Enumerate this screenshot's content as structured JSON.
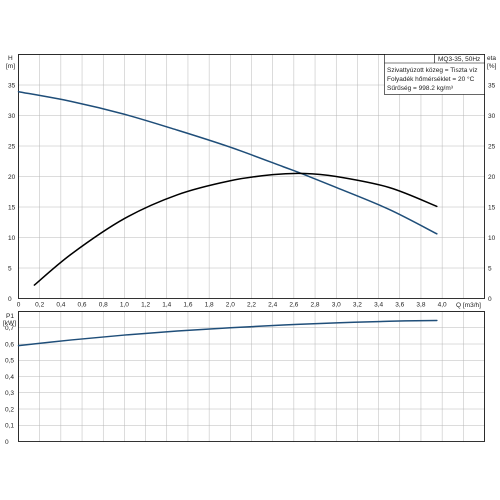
{
  "legend": {
    "model": "MQ3-35, 50Hz",
    "lines": [
      "Szivattyúzott közeg = Tiszta víz",
      "Folyadék hőmérséklet = 20 °C",
      "Sűrűség = 998.2 kg/m³"
    ]
  },
  "colors": {
    "head": "#1f4e79",
    "eta": "#000000",
    "power": "#1f4e79",
    "grid": "#b8b8b8",
    "frame": "#000000"
  },
  "chart_data": [
    {
      "type": "line",
      "xlabel": "Q [m3/h]",
      "ylabel_left": [
        "H",
        "[m]"
      ],
      "ylabel_right": [
        "eta",
        "[%]"
      ],
      "xlim": [
        0,
        4.4
      ],
      "ylim": [
        0,
        40
      ],
      "x_ticks": [
        "0",
        "0,2",
        "0,4",
        "0,6",
        "0,8",
        "1,0",
        "1,2",
        "1,4",
        "1,6",
        "1,8",
        "2,0",
        "2,2",
        "2,4",
        "2,6",
        "2,8",
        "3,0",
        "3,2",
        "3,4",
        "3,6",
        "3,8",
        "4,0"
      ],
      "y_ticks": [
        "0",
        "5",
        "10",
        "15",
        "20",
        "25",
        "30",
        "35"
      ],
      "grid": true,
      "series": [
        {
          "key": "head",
          "x": [
            0,
            0.5,
            1.0,
            1.5,
            2.0,
            2.5,
            2.7,
            3.0,
            3.5,
            3.95
          ],
          "y": [
            33.9,
            32.3,
            30.2,
            27.6,
            24.8,
            21.6,
            20.3,
            18.2,
            14.6,
            10.6
          ]
        },
        {
          "key": "eta",
          "x": [
            0.15,
            0.5,
            1.0,
            1.5,
            2.0,
            2.4,
            2.7,
            3.0,
            3.5,
            3.95
          ],
          "y": [
            2.2,
            7.3,
            13.1,
            17.0,
            19.3,
            20.3,
            20.5,
            20.0,
            18.2,
            15.1
          ]
        }
      ]
    },
    {
      "type": "line",
      "ylabel_left": [
        "P1",
        "[kW]"
      ],
      "xlim": [
        0,
        4.4
      ],
      "ylim": [
        0,
        0.8
      ],
      "y_ticks": [
        "0",
        "0,1",
        "0,2",
        "0,3",
        "0,4",
        "0,5",
        "0,6",
        "0,7"
      ],
      "grid": true,
      "series": [
        {
          "key": "power",
          "x": [
            0,
            0.5,
            1.0,
            1.5,
            2.0,
            2.5,
            3.0,
            3.5,
            3.95
          ],
          "y": [
            0.59,
            0.625,
            0.655,
            0.68,
            0.7,
            0.717,
            0.73,
            0.74,
            0.745
          ]
        }
      ]
    }
  ]
}
